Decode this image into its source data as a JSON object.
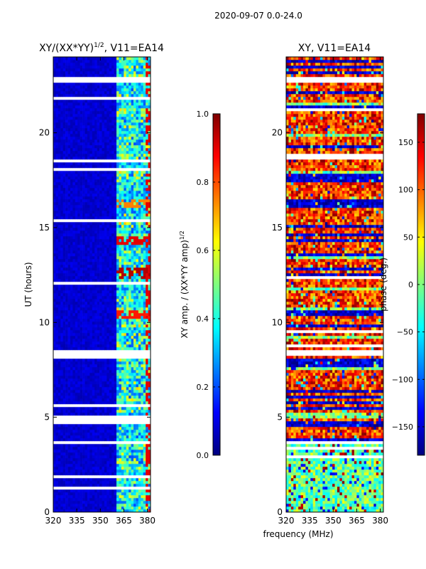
{
  "suptitle": "2020-09-07 0.0-24.0",
  "chart_data": [
    {
      "type": "heatmap",
      "title_main": "XY/(XX*YY)",
      "title_sup": "1/2",
      "title_suffix": ", V11=EA14",
      "xlabel": "",
      "ylabel": "UT (hours)",
      "xlim": [
        320,
        382
      ],
      "ylim": [
        0,
        24
      ],
      "xticks": [
        320,
        335,
        350,
        365,
        380
      ],
      "yticks": [
        0,
        5,
        10,
        15,
        20
      ],
      "colorbar": {
        "label": "XY amp. / (XX*YY amp)",
        "label_sup": "1/2",
        "range": [
          0.0,
          1.0
        ],
        "ticks": [
          "0.0",
          "0.2",
          "0.4",
          "0.6",
          "0.8",
          "1.0"
        ],
        "colormap": "jet"
      },
      "flagged_bands_hours": [
        [
          8.2,
          8.6
        ],
        [
          3.6,
          3.8
        ],
        [
          22.6,
          22.9
        ]
      ],
      "description_values": {
        "low_freq_region_value": 0.05,
        "high_freq_region_range": [
          0.2,
          0.7
        ],
        "hot_spots": [
          {
            "hour": 14.3,
            "value": 0.9
          },
          {
            "hour": 12.6,
            "value": 0.95
          },
          {
            "hour": 10.4,
            "value": 0.85
          },
          {
            "hour": 16.3,
            "value": 0.75
          }
        ]
      }
    },
    {
      "type": "heatmap",
      "title_main": "XY, V11=EA14",
      "xlabel": "frequency (MHz)",
      "ylabel": "",
      "xlim": [
        320,
        382
      ],
      "ylim": [
        0,
        24
      ],
      "xticks": [
        320,
        335,
        350,
        365,
        380
      ],
      "yticks": [
        0,
        5,
        10,
        15,
        20
      ],
      "colorbar": {
        "label": "phase (deg.)",
        "range": [
          -180,
          180
        ],
        "ticks": [
          "-150",
          "-100",
          "-50",
          "0",
          "50",
          "100",
          "150"
        ],
        "colormap": "jet"
      },
      "flagged_bands_hours": [
        [
          8.2,
          8.6
        ],
        [
          3.6,
          3.8
        ],
        [
          22.6,
          22.9
        ]
      ],
      "description_values": {
        "early_phase_range_deg": [
          -60,
          40
        ],
        "late_phase_range_deg": [
          60,
          180
        ]
      }
    }
  ],
  "colors": {
    "jet": [
      "#00007f",
      "#0000ff",
      "#007fff",
      "#00ffff",
      "#7fff7f",
      "#ffff00",
      "#ff7f00",
      "#ff0000",
      "#7f0000"
    ]
  }
}
